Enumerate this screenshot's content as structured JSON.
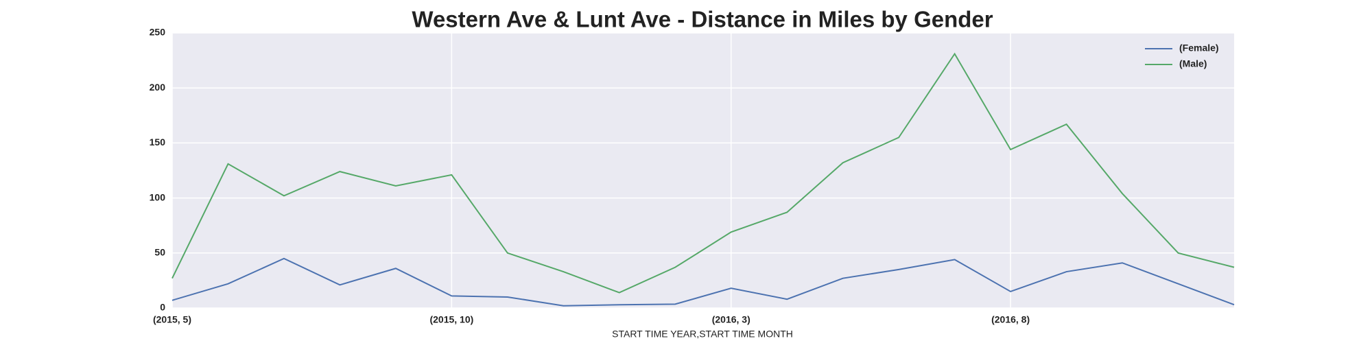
{
  "chart_data": {
    "type": "line",
    "title": "Western Ave & Lunt Ave - Distance in Miles by Gender",
    "xlabel": "START TIME YEAR,START TIME MONTH",
    "categories": [
      "(2015, 5)",
      null,
      null,
      null,
      null,
      "(2015, 10)",
      null,
      null,
      null,
      null,
      "(2016, 3)",
      null,
      null,
      null,
      null,
      "(2016, 8)",
      null,
      null,
      null,
      null
    ],
    "series": [
      {
        "name": "(Female)",
        "color": "#4c72b0",
        "values": [
          7,
          22,
          45,
          21,
          36,
          11,
          10,
          2,
          3,
          3.5,
          18,
          8,
          27,
          35,
          44,
          15,
          33,
          41,
          22,
          3
        ]
      },
      {
        "name": "(Male)",
        "color": "#55a868",
        "values": [
          27,
          131,
          102,
          124,
          111,
          121,
          50,
          33,
          14,
          37,
          69,
          87,
          132,
          155,
          231,
          144,
          167,
          104,
          50,
          37
        ]
      }
    ],
    "ylim": [
      0,
      250
    ],
    "yticks": [
      0,
      50,
      100,
      150,
      200,
      250
    ],
    "grid": true,
    "legend": "upper right"
  }
}
